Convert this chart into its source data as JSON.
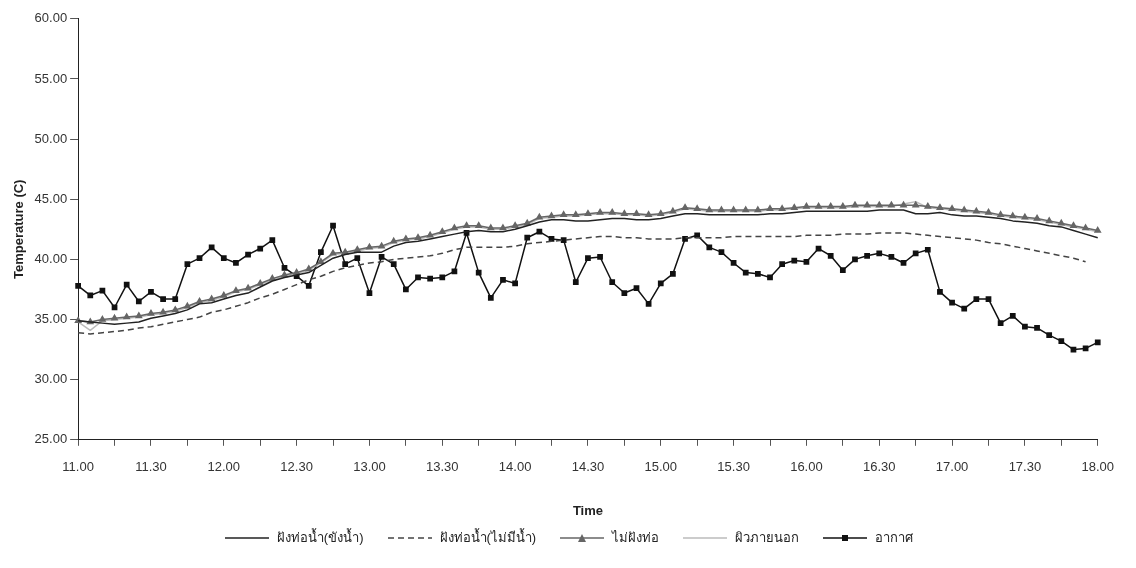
{
  "chart_data": {
    "type": "line",
    "xlabel": "Time",
    "ylabel": "Temperature (C)",
    "legend": "bottom",
    "grid": false,
    "categories": [
      "11.00",
      null,
      null,
      null,
      null,
      null,
      "11.30",
      null,
      null,
      null,
      null,
      null,
      "12.00",
      null,
      null,
      null,
      null,
      null,
      "12.30",
      null,
      null,
      null,
      null,
      null,
      "13.00",
      null,
      null,
      null,
      null,
      null,
      "13.30",
      null,
      null,
      null,
      null,
      null,
      "14.00",
      null,
      null,
      null,
      null,
      null,
      "14.30",
      null,
      null,
      null,
      null,
      null,
      "15.00",
      null,
      null,
      null,
      null,
      null,
      "15.30",
      null,
      null,
      null,
      null,
      null,
      "16.00",
      null,
      null,
      null,
      null,
      null,
      "16.30",
      null,
      null,
      null,
      null,
      null,
      "17.00",
      null,
      null,
      null,
      null,
      null,
      "17.30",
      null,
      null,
      null,
      null,
      null,
      "18.00"
    ],
    "ylim": [
      25,
      60
    ],
    "yticks": [
      {
        "value": 25,
        "label": "25.00"
      },
      {
        "value": 30,
        "label": "30.00"
      },
      {
        "value": 35,
        "label": "35.00"
      },
      {
        "value": 40,
        "label": "40.00"
      },
      {
        "value": 45,
        "label": "45.00"
      },
      {
        "value": 50,
        "label": "50.00"
      },
      {
        "value": 55,
        "label": "55.00"
      },
      {
        "value": 60,
        "label": "60.00"
      }
    ],
    "series": [
      {
        "name": "ฝังท่อน้ำ(ขังน้ำ)",
        "color": "#222222",
        "marker": "none",
        "line_style": "solid",
        "values": [
          34.9,
          34.8,
          34.7,
          34.6,
          34.7,
          34.8,
          35.1,
          35.3,
          35.5,
          35.8,
          36.3,
          36.4,
          36.7,
          37.0,
          37.2,
          37.7,
          38.2,
          38.5,
          38.7,
          38.9,
          39.5,
          40.1,
          40.4,
          40.6,
          40.6,
          40.6,
          41.1,
          41.4,
          41.5,
          41.7,
          41.9,
          42.1,
          42.3,
          42.4,
          42.3,
          42.3,
          42.5,
          42.8,
          43.1,
          43.3,
          43.3,
          43.2,
          43.2,
          43.3,
          43.4,
          43.4,
          43.3,
          43.3,
          43.4,
          43.6,
          43.8,
          43.8,
          43.7,
          43.7,
          43.7,
          43.7,
          43.7,
          43.8,
          43.8,
          43.9,
          44.0,
          44.0,
          44.0,
          44.0,
          44.0,
          44.0,
          44.1,
          44.1,
          44.1,
          43.8,
          43.8,
          43.9,
          43.7,
          43.6,
          43.6,
          43.5,
          43.4,
          43.2,
          43.1,
          43.0,
          42.8,
          42.7,
          42.4,
          42.1,
          41.8
        ]
      },
      {
        "name": "ฝังท่อน้ำ(ไม่มีน้ำ)",
        "color": "#444444",
        "marker": "none",
        "line_style": "dashed",
        "values": [
          33.9,
          33.8,
          33.9,
          34.0,
          34.1,
          34.3,
          34.4,
          34.6,
          34.8,
          35.0,
          35.2,
          35.6,
          35.8,
          36.1,
          36.4,
          36.8,
          37.1,
          37.5,
          37.9,
          38.3,
          38.6,
          39.0,
          39.3,
          39.5,
          39.7,
          39.8,
          40.0,
          40.1,
          40.2,
          40.3,
          40.5,
          40.8,
          41.0,
          41.0,
          41.0,
          41.0,
          41.1,
          41.3,
          41.4,
          41.5,
          41.6,
          41.7,
          41.8,
          41.9,
          41.9,
          41.8,
          41.8,
          41.7,
          41.7,
          41.7,
          41.8,
          41.8,
          41.8,
          41.8,
          41.9,
          41.9,
          41.9,
          41.9,
          41.9,
          41.9,
          42.0,
          42.0,
          42.0,
          42.1,
          42.1,
          42.1,
          42.2,
          42.2,
          42.2,
          42.1,
          42.0,
          41.9,
          41.8,
          41.7,
          41.6,
          41.4,
          41.3,
          41.1,
          40.9,
          40.7,
          40.5,
          40.3,
          40.1,
          39.8,
          null
        ]
      },
      {
        "name": "ไม่ฝังท่อ",
        "color": "#666666",
        "marker": "triangle",
        "line_style": "solid",
        "values": [
          34.9,
          34.8,
          35.0,
          35.1,
          35.2,
          35.3,
          35.5,
          35.6,
          35.8,
          36.1,
          36.5,
          36.7,
          37.0,
          37.4,
          37.6,
          38.0,
          38.4,
          38.7,
          38.9,
          39.2,
          39.8,
          40.5,
          40.6,
          40.8,
          41.0,
          41.1,
          41.5,
          41.7,
          41.8,
          42.0,
          42.3,
          42.6,
          42.8,
          42.8,
          42.6,
          42.6,
          42.8,
          43.0,
          43.5,
          43.6,
          43.7,
          43.7,
          43.8,
          43.9,
          43.9,
          43.8,
          43.8,
          43.7,
          43.8,
          44.0,
          44.3,
          44.2,
          44.1,
          44.1,
          44.1,
          44.1,
          44.1,
          44.2,
          44.2,
          44.3,
          44.4,
          44.4,
          44.4,
          44.4,
          44.5,
          44.5,
          44.5,
          44.5,
          44.5,
          44.5,
          44.4,
          44.3,
          44.2,
          44.1,
          44.0,
          43.9,
          43.7,
          43.6,
          43.5,
          43.4,
          43.2,
          43.0,
          42.8,
          42.6,
          42.4
        ]
      },
      {
        "name": "ผิวภายนอก",
        "color": "#bbbbbb",
        "marker": "none",
        "line_style": "solid",
        "values": [
          34.8,
          34.1,
          34.9,
          35.0,
          35.1,
          35.2,
          35.4,
          35.5,
          35.7,
          36.0,
          36.4,
          36.6,
          36.9,
          37.3,
          37.5,
          37.9,
          38.3,
          38.6,
          38.8,
          39.1,
          39.7,
          40.4,
          40.5,
          40.7,
          40.9,
          41.0,
          41.4,
          41.6,
          41.7,
          41.9,
          42.2,
          42.5,
          42.7,
          42.7,
          42.5,
          42.5,
          42.7,
          42.9,
          43.4,
          43.5,
          43.6,
          43.6,
          43.7,
          43.8,
          43.8,
          43.7,
          43.7,
          43.6,
          43.7,
          43.9,
          44.2,
          44.1,
          44.0,
          44.0,
          44.0,
          44.0,
          44.0,
          44.1,
          44.1,
          44.2,
          44.3,
          44.3,
          44.3,
          44.3,
          44.4,
          44.4,
          44.4,
          44.4,
          44.6,
          44.8,
          44.3,
          44.2,
          44.1,
          44.0,
          43.9,
          43.8,
          43.6,
          43.5,
          43.4,
          43.3,
          43.1,
          42.9,
          42.7,
          42.5,
          42.3
        ]
      },
      {
        "name": "อากาศ",
        "color": "#111111",
        "marker": "square",
        "line_style": "solid",
        "values": [
          37.8,
          37.0,
          37.4,
          36.0,
          37.9,
          36.5,
          37.3,
          36.7,
          36.7,
          39.6,
          40.1,
          41.0,
          40.1,
          39.7,
          40.4,
          40.9,
          41.6,
          39.3,
          38.6,
          37.8,
          40.6,
          42.8,
          39.6,
          40.1,
          37.2,
          40.2,
          39.6,
          37.5,
          38.5,
          38.4,
          38.5,
          39.0,
          42.2,
          38.9,
          36.8,
          38.3,
          38.0,
          41.8,
          42.3,
          41.7,
          41.6,
          38.1,
          40.1,
          40.2,
          38.1,
          37.2,
          37.6,
          36.3,
          38.0,
          38.8,
          41.7,
          42.0,
          41.0,
          40.6,
          39.7,
          38.9,
          38.8,
          38.5,
          39.6,
          39.9,
          39.8,
          40.9,
          40.3,
          39.1,
          40.0,
          40.3,
          40.5,
          40.2,
          39.7,
          40.5,
          40.8,
          37.3,
          36.4,
          35.9,
          36.7,
          36.7,
          34.7,
          35.3,
          34.4,
          34.3,
          33.7,
          33.2,
          32.5,
          32.6,
          33.1
        ]
      }
    ]
  }
}
